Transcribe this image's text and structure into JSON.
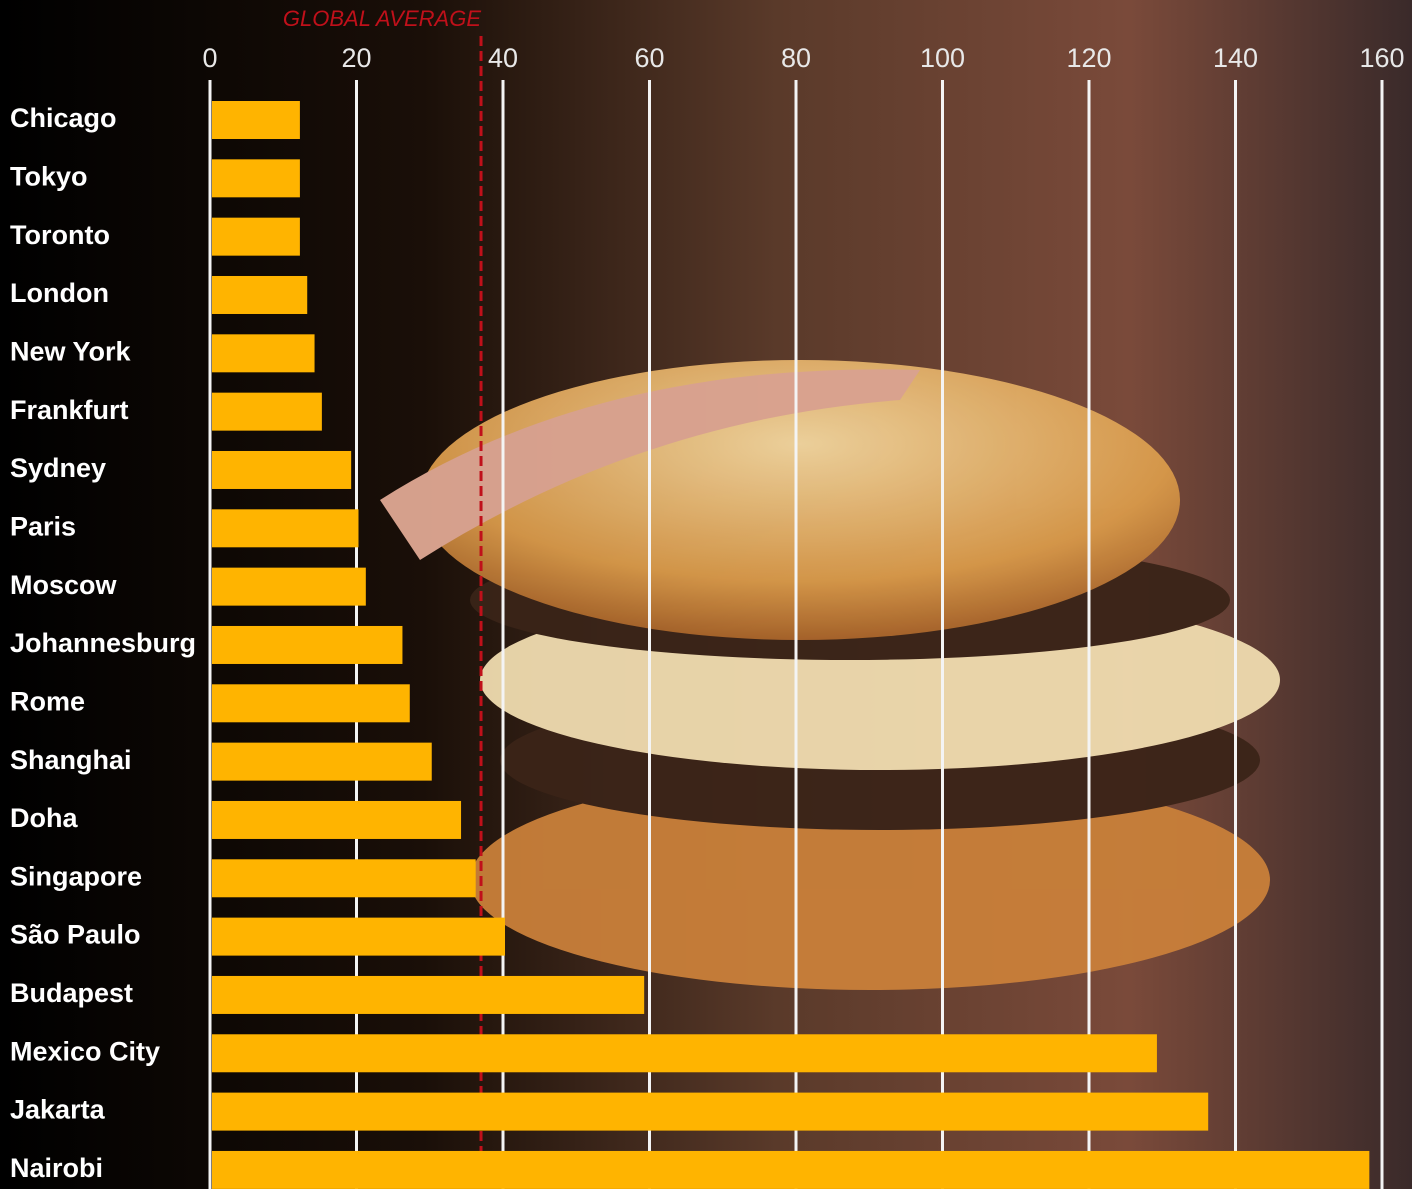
{
  "chart_data": {
    "type": "hbar",
    "categories": [
      "Chicago",
      "Tokyo",
      "Toronto",
      "London",
      "New York",
      "Frankfurt",
      "Sydney",
      "Paris",
      "Moscow",
      "Johannesburg",
      "Rome",
      "Shanghai",
      "Doha",
      "Singapore",
      "São Paulo",
      "Budapest",
      "Mexico City",
      "Jakarta",
      "Nairobi"
    ],
    "values": [
      12,
      12,
      12,
      13,
      14,
      15,
      19,
      20,
      21,
      26,
      27,
      30,
      34,
      36,
      40,
      59,
      129,
      136,
      158
    ],
    "color": "#ffb400",
    "xlim": [
      0,
      160
    ],
    "xticks": [
      0,
      20,
      40,
      60,
      80,
      100,
      120,
      140,
      160
    ],
    "grid": true,
    "global_average": {
      "label": "GLOBAL AVERAGE",
      "value": 37,
      "color": "#c0101a"
    }
  }
}
